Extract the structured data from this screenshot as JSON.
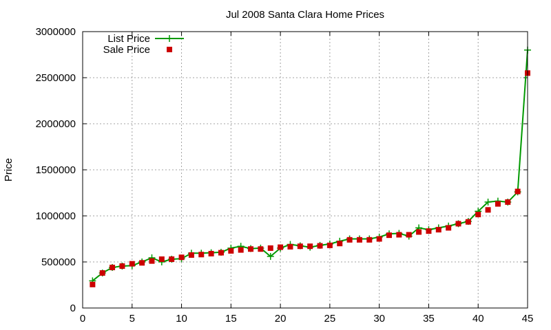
{
  "chart_data": {
    "type": "line",
    "title": "Jul 2008 Santa Clara Home Prices",
    "xlabel": "",
    "ylabel": "Price",
    "xlim": [
      0,
      45
    ],
    "ylim": [
      0,
      3000000
    ],
    "xticks": [
      0,
      5,
      10,
      15,
      20,
      25,
      30,
      35,
      40,
      45
    ],
    "yticks": [
      0,
      500000,
      1000000,
      1500000,
      2000000,
      2500000,
      3000000
    ],
    "grid": true,
    "legend_position": "top-left",
    "x": [
      1,
      2,
      3,
      4,
      5,
      6,
      7,
      8,
      9,
      10,
      11,
      12,
      13,
      14,
      15,
      16,
      17,
      18,
      19,
      20,
      21,
      22,
      23,
      24,
      25,
      26,
      27,
      28,
      29,
      30,
      31,
      32,
      33,
      34,
      35,
      36,
      37,
      38,
      39,
      40,
      41,
      42,
      43,
      44,
      45
    ],
    "series": [
      {
        "name": "List Price",
        "style": "line+plus",
        "color": "#009900",
        "values": [
          295000,
          380000,
          440000,
          455000,
          460000,
          500000,
          545000,
          500000,
          530000,
          535000,
          595000,
          595000,
          600000,
          605000,
          650000,
          670000,
          645000,
          650000,
          560000,
          650000,
          690000,
          675000,
          660000,
          680000,
          695000,
          725000,
          750000,
          750000,
          750000,
          770000,
          805000,
          810000,
          780000,
          870000,
          850000,
          870000,
          890000,
          915000,
          940000,
          1050000,
          1150000,
          1160000,
          1150000,
          1260000,
          2800000
        ]
      },
      {
        "name": "Sale Price",
        "style": "square",
        "color": "#cc0000",
        "values": [
          255000,
          380000,
          440000,
          455000,
          480000,
          490000,
          510000,
          530000,
          530000,
          550000,
          575000,
          580000,
          590000,
          600000,
          620000,
          630000,
          640000,
          640000,
          650000,
          660000,
          665000,
          670000,
          670000,
          675000,
          680000,
          700000,
          740000,
          740000,
          740000,
          750000,
          790000,
          795000,
          795000,
          825000,
          835000,
          850000,
          870000,
          915000,
          935000,
          1015000,
          1065000,
          1130000,
          1150000,
          1265000,
          2550000
        ]
      }
    ]
  }
}
